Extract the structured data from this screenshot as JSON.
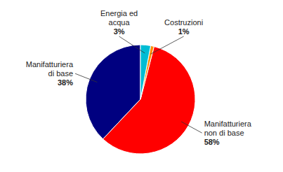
{
  "chart_data": {
    "type": "pie",
    "categories": [
      "Manifatturiera\ndi base",
      "Manifatturiera\nnon di base",
      "Costruzioni",
      "Energia ed\nacqua"
    ],
    "values": [
      38,
      58,
      1,
      3
    ],
    "value_labels": [
      "38%",
      "58%",
      "1%",
      "3%"
    ],
    "colors": [
      "#000080",
      "#ff0000",
      "#ff8c00",
      "#00bcd4"
    ],
    "data_labels": true
  }
}
